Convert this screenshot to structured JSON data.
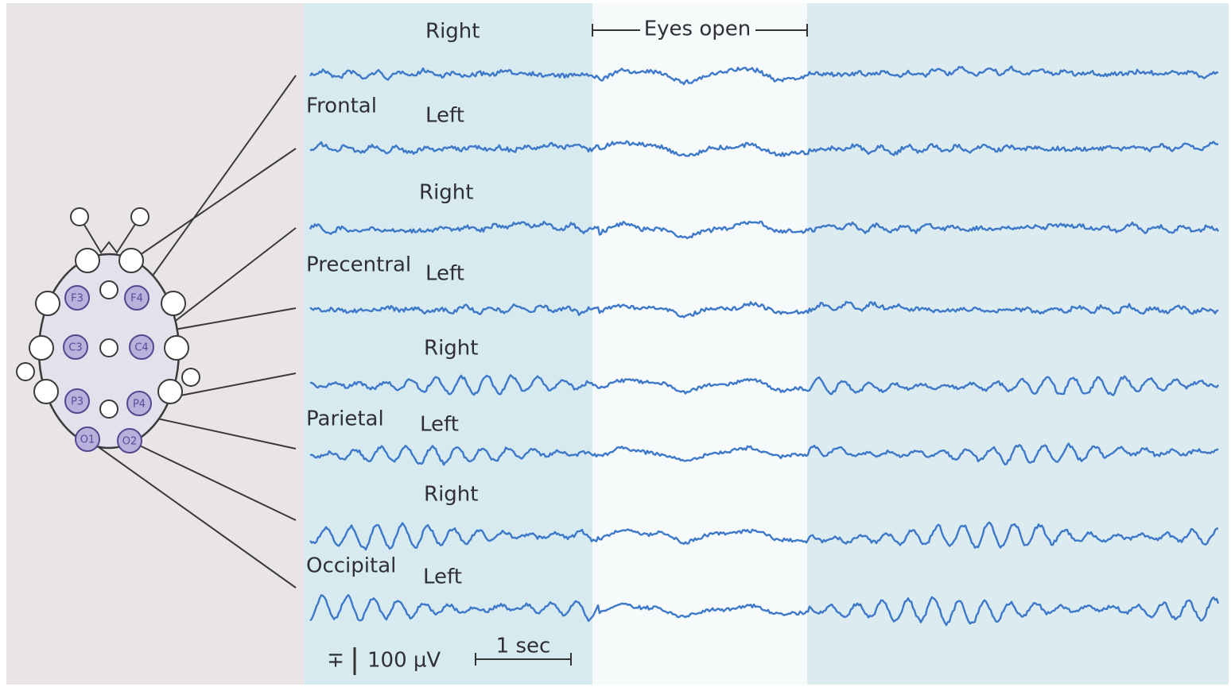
{
  "header": {
    "eyes_open": "Eyes open"
  },
  "regions": [
    {
      "name": "Frontal",
      "right": "Right",
      "left": "Left"
    },
    {
      "name": "Precentral",
      "right": "Right",
      "left": "Left"
    },
    {
      "name": "Parietal",
      "right": "Right",
      "left": "Left"
    },
    {
      "name": "Occipital",
      "right": "Right",
      "left": "Left"
    }
  ],
  "electrodes": [
    "F3",
    "F4",
    "C3",
    "C4",
    "P3",
    "P4",
    "O1",
    "O2"
  ],
  "scale": {
    "amplitude_symbol": "∓",
    "amplitude": "100 µV",
    "time": "1 sec"
  }
}
